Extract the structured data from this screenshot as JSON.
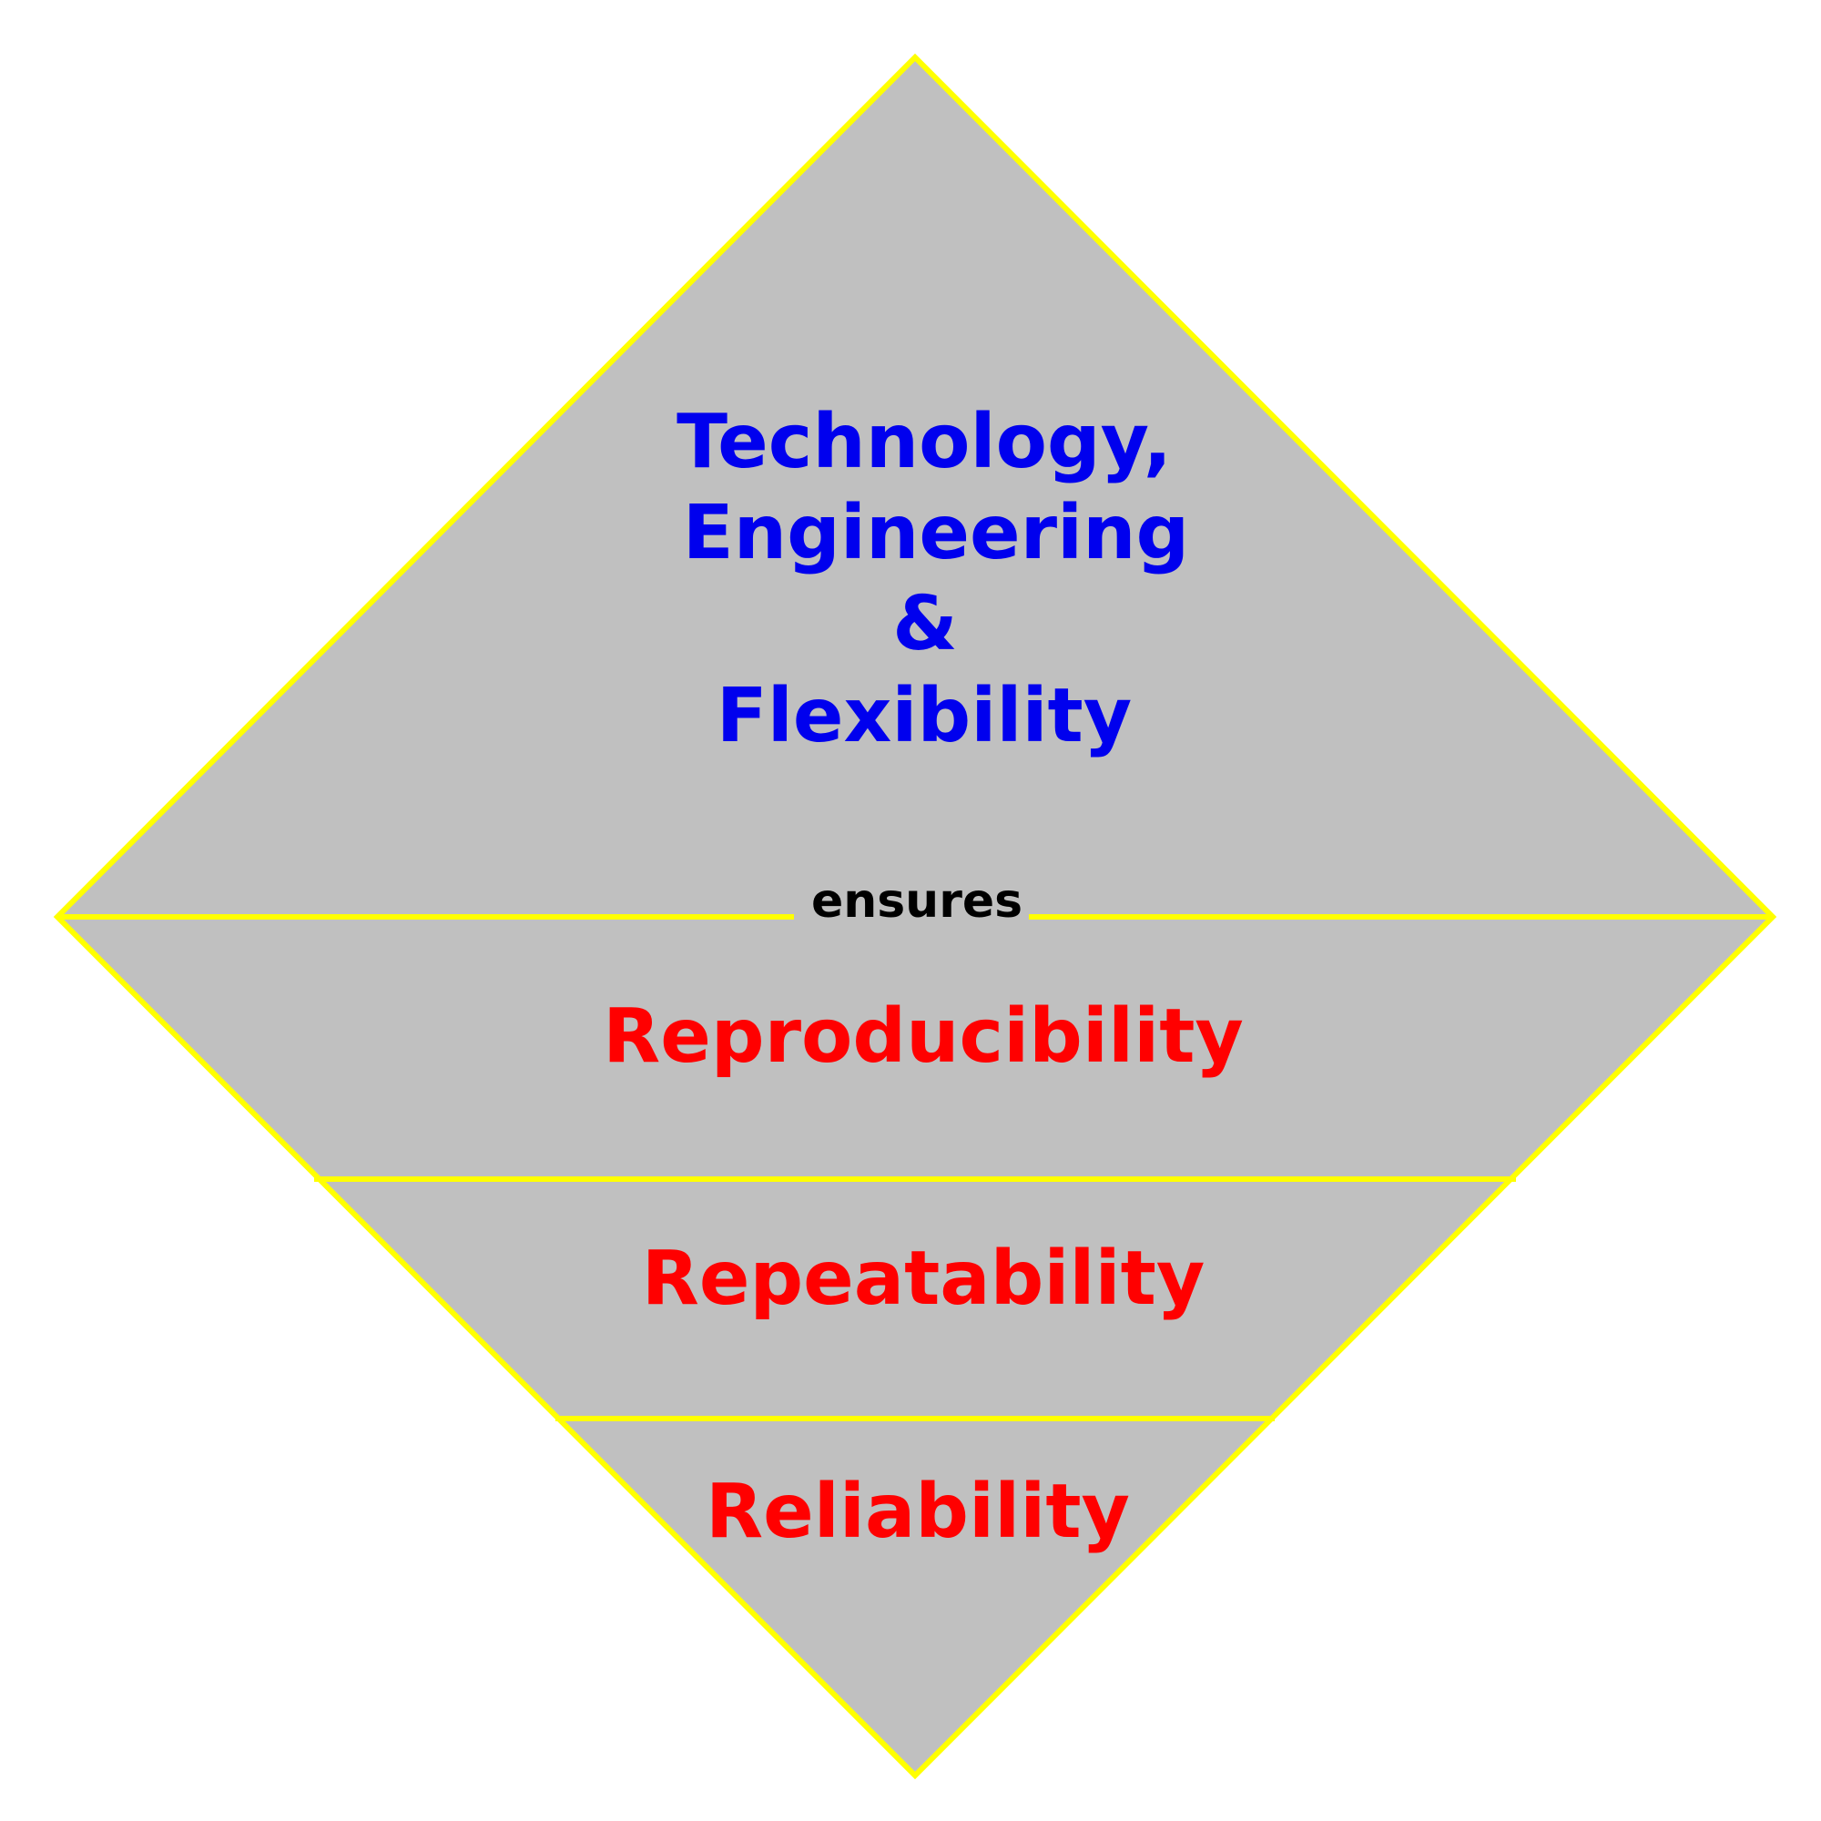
{
  "colors": {
    "fill": "#c0c0c0",
    "outline": "#ffff00",
    "top_text": "#0000ee",
    "tier_text": "#ff0000",
    "connector_text": "#000000"
  },
  "top_section": {
    "lines": [
      "Technology,",
      "Engineering",
      "&",
      "Flexibility"
    ]
  },
  "connector": {
    "label": "ensures"
  },
  "tiers": [
    {
      "label": "Reproducibility"
    },
    {
      "label": "Repeatability"
    },
    {
      "label": "Reliability"
    }
  ]
}
